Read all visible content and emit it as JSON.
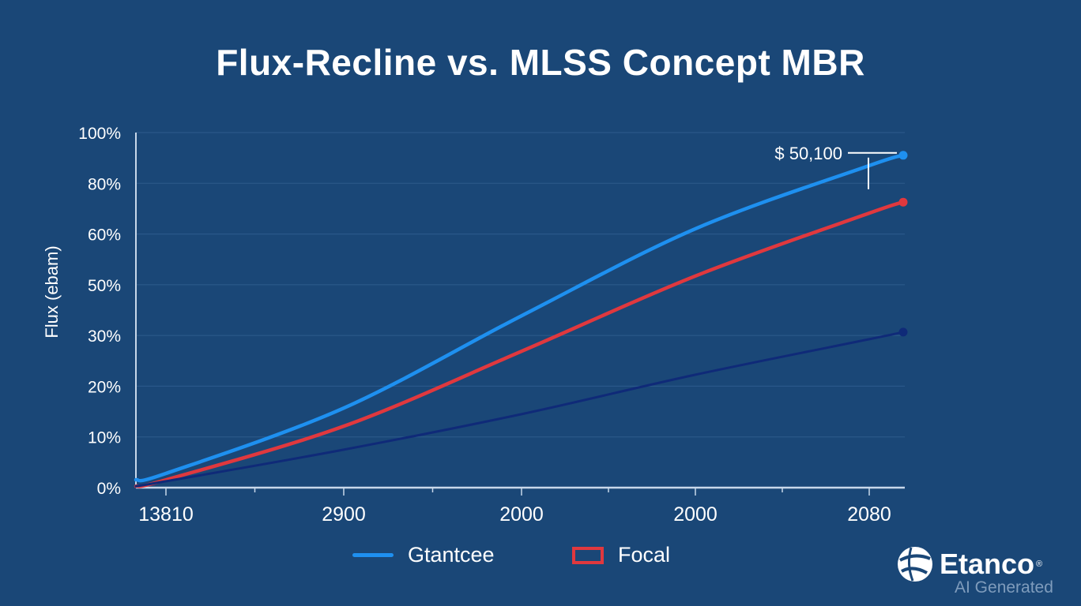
{
  "chart_data": {
    "type": "line",
    "title": "Flux-Recline vs. MLSS Concept MBR",
    "ylabel": "Flux (ebam)",
    "xlabel": "",
    "categories": [
      "13810",
      "2900",
      "2000",
      "2000",
      "2080"
    ],
    "y_tick_labels": [
      "0%",
      "10%",
      "20%",
      "30%",
      "50%",
      "60%",
      "80%",
      "100%"
    ],
    "ylim": [
      0,
      100
    ],
    "grid": true,
    "legend_placement": "bottom",
    "series": [
      {
        "name": "Gtantcee",
        "color": "#1e90f0",
        "start": 2.2,
        "values": [
          4.0,
          22.4,
          48.4,
          72.9,
          90.7
        ],
        "end": 93.6
      },
      {
        "name": "Focal",
        "color": "#e0383e",
        "start": 0.4,
        "values": [
          2.2,
          17.3,
          38.4,
          59.6,
          77.3
        ],
        "end": 80.4
      },
      {
        "color": "#0f2a78",
        "start": 0.4,
        "values": [
          1.8,
          10.7,
          20.7,
          31.8,
          41.8
        ],
        "end": 43.8
      }
    ],
    "annotation": {
      "text": "$ 50,100",
      "series": 0
    }
  },
  "logo": {
    "name": "Etanco",
    "mark": "®",
    "subtitle": "AI Generated"
  },
  "colors": {
    "background": "#1a4777",
    "grid": "#2d5b8c",
    "axis": "#c8d8ea"
  }
}
